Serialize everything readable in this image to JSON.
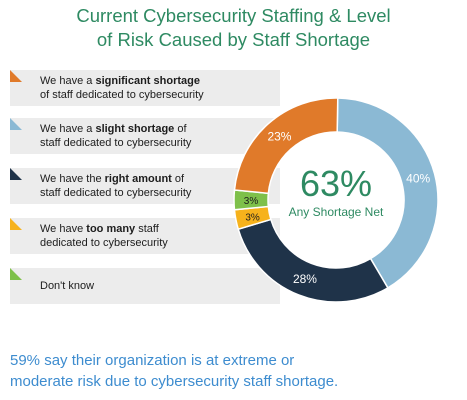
{
  "title": {
    "line1": "Current Cybersecurity Staffing & Level",
    "line2": "of Risk Caused by Staff Shortage"
  },
  "legend": [
    {
      "pre": "We have a ",
      "bold": "significant shortage",
      "line2": "of staff dedicated to cybersecurity",
      "color": "#e07a2a"
    },
    {
      "pre": "We have a ",
      "bold": "slight shortage",
      "post": " of",
      "line2": "staff dedicated to cybersecurity",
      "color": "#8bb9d4"
    },
    {
      "pre": "We have the ",
      "bold": "right amount",
      "post": " of",
      "line2": "staff dedicated to cybersecurity",
      "color": "#1f3349"
    },
    {
      "pre": "We have ",
      "bold": "too many",
      "post": " staff",
      "line2": "dedicated to cybersecurity",
      "color": "#f6b21c"
    },
    {
      "pre": "Don't know",
      "color": "#7ec04a"
    }
  ],
  "center": {
    "value": "63%",
    "label": "Any Shortage Net"
  },
  "footnote": {
    "line1": "59% say their organization is at extreme or",
    "line2": "moderate risk due to cybersecurity staff shortage."
  },
  "chart_data": {
    "type": "pie",
    "title": "Current Cybersecurity Staffing & Level of Risk Caused by Staff Shortage",
    "slices": [
      {
        "name": "We have a significant shortage of staff dedicated to cybersecurity",
        "value": 23,
        "label": "23%",
        "color": "#e07a2a"
      },
      {
        "name": "We have a slight shortage of staff dedicated to cybersecurity",
        "value": 40,
        "label": "40%",
        "color": "#8bb9d4"
      },
      {
        "name": "We have the right amount of staff dedicated to cybersecurity",
        "value": 28,
        "label": "28%",
        "color": "#1f3349"
      },
      {
        "name": "We have too many staff dedicated to cybersecurity",
        "value": 3,
        "label": "3%",
        "color": "#f6b21c"
      },
      {
        "name": "Don't know",
        "value": 3,
        "label": "3%",
        "color": "#7ec04a"
      }
    ],
    "center_value": "63%",
    "center_label": "Any Shortage Net"
  }
}
